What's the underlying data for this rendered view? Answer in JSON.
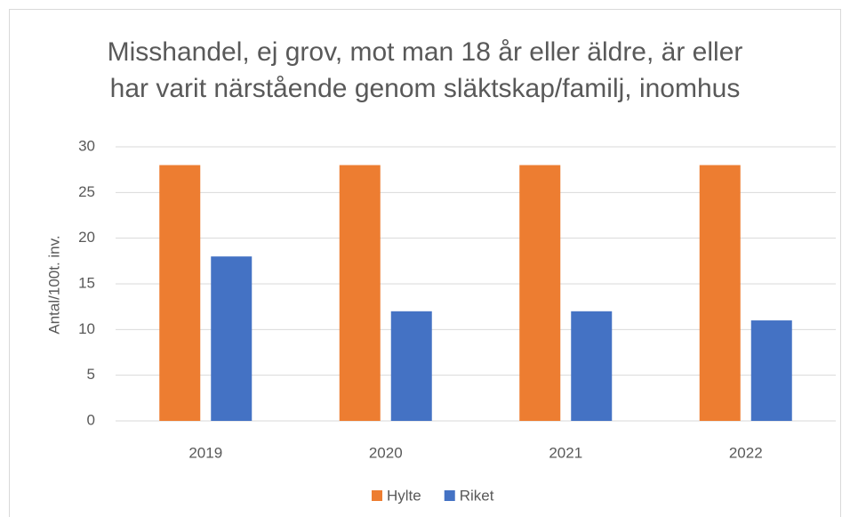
{
  "chart_data": {
    "type": "bar",
    "title": "Misshandel, ej grov, mot man 18 år eller äldre, är eller har varit närstående genom släktskap/familj, inomhus",
    "y_label": "Antal/100t. inv.",
    "categories": [
      "2019",
      "2020",
      "2021",
      "2022"
    ],
    "series": [
      {
        "name": "Hylte",
        "color": "#ed7d31",
        "values": [
          28,
          28,
          28,
          28
        ]
      },
      {
        "name": "Riket",
        "color": "#4472c4",
        "values": [
          18,
          12,
          12,
          11
        ]
      }
    ],
    "ylim": [
      0,
      30
    ],
    "yticks": [
      0,
      5,
      10,
      15,
      20,
      25,
      30
    ],
    "grid": true,
    "legend": "bottom"
  }
}
